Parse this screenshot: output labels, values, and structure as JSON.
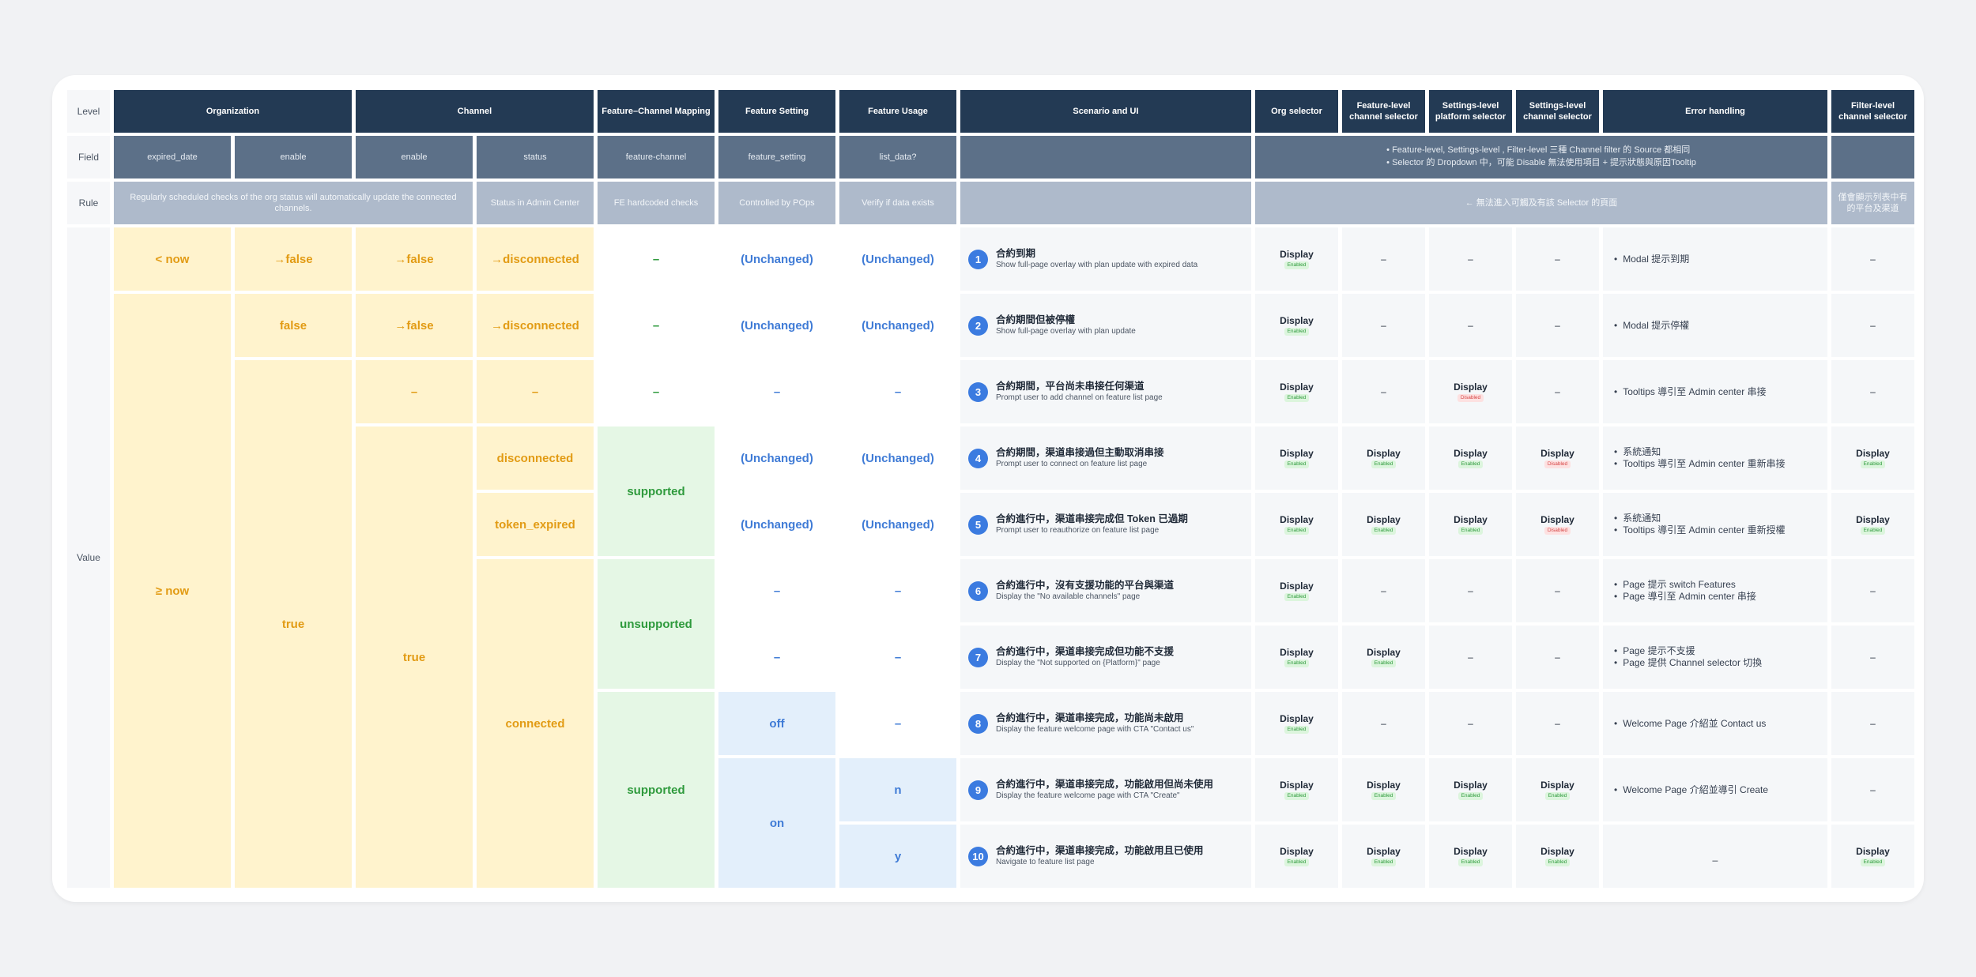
{
  "side_labels": {
    "level": "Level",
    "field": "Field",
    "rule": "Rule",
    "value": "Value"
  },
  "headers": {
    "organization": "Organization",
    "channel": "Channel",
    "mapping": "Feature–Channel Mapping",
    "feature_setting": "Feature Setting",
    "feature_usage": "Feature Usage",
    "scenario": "Scenario and UI",
    "org_selector": "Org selector",
    "feature_level": "Feature-level channel selector",
    "settings_platform": "Settings-level platform selector",
    "settings_channel": "Settings-level channel selector",
    "error_handling": "Error handling",
    "filter_level": "Filter-level channel selector"
  },
  "fields": {
    "expired_date": "expired_date",
    "org_enable": "enable",
    "ch_enable": "enable",
    "status": "status",
    "feature_channel": "feature-channel",
    "feature_setting": "feature_setting",
    "list_data": "list_data?",
    "notes": [
      "Feature-level, Settings-level , Filter-level 三種 Channel filter 的 Source 都相同",
      "Selector 的 Dropdown 中，可能 Disable 無法使用項目 + 提示狀態與原因Tooltip"
    ]
  },
  "rules": {
    "org": "Regularly scheduled checks of the org status will automatically update the connected channels.",
    "status": "Status in Admin Center",
    "mapping": "FE hardcoded checks",
    "setting": "Controlled by POps",
    "usage": "Verify if data exists",
    "selectors": "← 無法進入可觸及有該 Selector 的頁面",
    "filter": "僅會顯示列表中有的平台及渠道"
  },
  "values": {
    "lt_now": "< now",
    "ge_now": "≥ now",
    "to_false": "→false",
    "false": "false",
    "true": "true",
    "to_disconnected": "→disconnected",
    "disconnected": "disconnected",
    "token_expired": "token_expired",
    "connected": "connected",
    "supported": "supported",
    "unsupported": "unsupported",
    "unchanged": "(Unchanged)",
    "off": "off",
    "on": "on",
    "n": "n",
    "y": "y",
    "dash": "–"
  },
  "labels": {
    "display": "Display",
    "enabled": "Enabled",
    "disabled": "Disabled"
  },
  "scenarios": [
    {
      "num": "1",
      "title": "合約到期",
      "sub": "Show full-page overlay with plan update with expired data"
    },
    {
      "num": "2",
      "title": "合約期間但被停權",
      "sub": "Show full-page overlay with plan update"
    },
    {
      "num": "3",
      "title": "合約期間，平台尚未串接任何渠道",
      "sub": "Prompt user to add channel on feature list page"
    },
    {
      "num": "4",
      "title": "合約期間，渠道串接過但主動取消串接",
      "sub": "Prompt user to connect on feature list page"
    },
    {
      "num": "5",
      "title": "合約進行中，渠道串接完成但 Token 已過期",
      "sub": "Prompt user to reauthorize on feature list page"
    },
    {
      "num": "6",
      "title": "合約進行中，沒有支援功能的平台與渠道",
      "sub": "Display the \"No available channels\" page"
    },
    {
      "num": "7",
      "title": "合約進行中，渠道串接完成但功能不支援",
      "sub": "Display the \"Not supported on {Platform}\" page"
    },
    {
      "num": "8",
      "title": "合約進行中，渠道串接完成，功能尚未啟用",
      "sub": "Display the feature welcome page with CTA \"Contact us\""
    },
    {
      "num": "9",
      "title": "合約進行中，渠道串接完成，功能啟用但尚未使用",
      "sub": "Display the feature welcome page with CTA \"Create\""
    },
    {
      "num": "10",
      "title": "合約進行中，渠道串接完成，功能啟用且已使用",
      "sub": "Navigate to feature list page"
    }
  ],
  "errors": [
    [
      "Modal 提示到期"
    ],
    [
      "Modal 提示停權"
    ],
    [
      "Tooltips 導引至 Admin center 串接"
    ],
    [
      "系統通知",
      "Tooltips  導引至 Admin center 重新串接"
    ],
    [
      "系統通知",
      "Tooltips  導引至 Admin center 重新授權"
    ],
    [
      "Page 提示 switch Features",
      "Page 導引至 Admin center 串接"
    ],
    [
      "Page 提示不支援",
      "Page 提供 Channel selector 切換"
    ],
    [
      "Welcome Page 介紹並 Contact us"
    ],
    [
      "Welcome Page 介紹並導引 Create"
    ],
    []
  ],
  "error_dash": "_",
  "selectors": [
    [
      "en",
      "-",
      "-",
      "-",
      "-"
    ],
    [
      "en",
      "-",
      "-",
      "-",
      "-"
    ],
    [
      "en",
      "-",
      "dis",
      "-",
      "-"
    ],
    [
      "en",
      "en",
      "en",
      "dis",
      "en"
    ],
    [
      "en",
      "en",
      "en",
      "dis",
      "en"
    ],
    [
      "en",
      "-",
      "-",
      "-",
      "-"
    ],
    [
      "en",
      "en",
      "-",
      "-",
      "-"
    ],
    [
      "en",
      "-",
      "-",
      "-",
      "-"
    ],
    [
      "en",
      "en",
      "en",
      "en",
      "-"
    ],
    [
      "en",
      "en",
      "en",
      "en",
      "en"
    ]
  ]
}
